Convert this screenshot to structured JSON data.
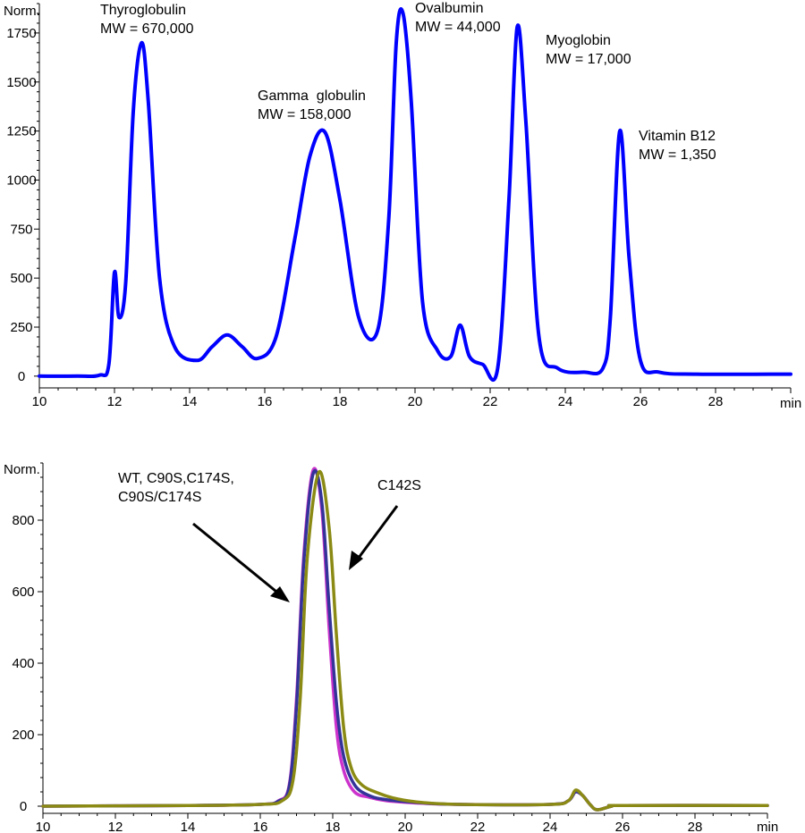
{
  "chart_data": [
    {
      "type": "line",
      "ylabel": "Norm.",
      "xunit": "min",
      "xlim": [
        10,
        30
      ],
      "ylim": [
        -60,
        1900
      ],
      "xticks": [
        10,
        12,
        14,
        16,
        18,
        20,
        22,
        24,
        26,
        28
      ],
      "yticks": [
        0,
        250,
        500,
        750,
        1000,
        1250,
        1500,
        1750
      ],
      "grid": false,
      "series": [
        {
          "color": "#0000ff",
          "x": [
            10,
            11,
            11.6,
            11.85,
            12.0,
            12.12,
            12.3,
            12.5,
            12.72,
            12.9,
            13.2,
            13.6,
            14.2,
            14.6,
            15.0,
            15.4,
            15.8,
            16.3,
            16.8,
            17.2,
            17.6,
            18.0,
            18.5,
            19.0,
            19.3,
            19.5,
            19.68,
            19.9,
            20.2,
            20.6,
            20.95,
            21.2,
            21.45,
            21.8,
            22.2,
            22.5,
            22.72,
            22.95,
            23.3,
            23.8,
            24.5,
            25.0,
            25.2,
            25.45,
            25.7,
            26.0,
            26.5,
            27.5,
            30.0
          ],
          "y": [
            0,
            0,
            5,
            60,
            530,
            300,
            480,
            1350,
            1700,
            1400,
            500,
            150,
            80,
            150,
            210,
            150,
            90,
            200,
            700,
            1120,
            1245,
            900,
            300,
            230,
            800,
            1700,
            1850,
            1400,
            380,
            130,
            100,
            260,
            100,
            60,
            40,
            900,
            1780,
            1300,
            200,
            40,
            20,
            40,
            300,
            1250,
            600,
            80,
            20,
            10,
            10
          ]
        }
      ],
      "annotations": [
        {
          "lines": [
            "Thyroglobulin",
            "MW = 670,000"
          ]
        },
        {
          "lines": [
            "Gamma  globulin",
            "MW = 158,000"
          ]
        },
        {
          "lines": [
            "Ovalbumin",
            "MW = 44,000"
          ]
        },
        {
          "lines": [
            "Myoglobin",
            "MW = 17,000"
          ]
        },
        {
          "lines": [
            "Vitamin B12",
            "MW = 1,350"
          ]
        }
      ]
    },
    {
      "type": "line",
      "ylabel": "Norm.",
      "xunit": "min",
      "xlim": [
        10,
        30
      ],
      "ylim": [
        -20,
        960
      ],
      "xticks": [
        10,
        12,
        14,
        16,
        18,
        20,
        22,
        24,
        26,
        28
      ],
      "yticks": [
        0,
        200,
        400,
        600,
        800
      ],
      "grid": false,
      "series": [
        {
          "color": "#cc33cc",
          "x": [
            10,
            14,
            16,
            16.5,
            16.8,
            17.0,
            17.2,
            17.46,
            17.7,
            17.9,
            18.1,
            18.3,
            18.6,
            19.0,
            19.5,
            20.5,
            21.5,
            24.0,
            24.5,
            24.7,
            24.9,
            25.1,
            25.3,
            25.7,
            26.0,
            30.0
          ],
          "y": [
            0,
            2,
            5,
            15,
            60,
            300,
            700,
            940,
            830,
            500,
            220,
            100,
            40,
            25,
            15,
            8,
            5,
            5,
            15,
            40,
            30,
            5,
            -10,
            0,
            2,
            2
          ]
        },
        {
          "color": "#33339a",
          "x": [
            10,
            14,
            16,
            16.5,
            16.8,
            17.0,
            17.2,
            17.46,
            17.7,
            17.9,
            18.1,
            18.3,
            18.6,
            19.0,
            19.5,
            20.5,
            21.5,
            24.0,
            24.5,
            24.7,
            24.9,
            25.1,
            25.3,
            25.7,
            26.0,
            30.0
          ],
          "y": [
            0,
            2,
            5,
            14,
            55,
            280,
            680,
            930,
            850,
            560,
            290,
            140,
            60,
            30,
            18,
            9,
            5,
            5,
            15,
            40,
            30,
            5,
            -10,
            0,
            2,
            2
          ]
        },
        {
          "color": "#8a8a14",
          "x": [
            10,
            14,
            16,
            16.6,
            16.9,
            17.1,
            17.3,
            17.62,
            17.9,
            18.1,
            18.3,
            18.5,
            18.8,
            19.3,
            19.8,
            20.5,
            21.5,
            24.0,
            24.5,
            24.7,
            24.9,
            25.1,
            25.3,
            25.7,
            26.0,
            30.0
          ],
          "y": [
            0,
            2,
            5,
            15,
            70,
            300,
            700,
            935,
            780,
            480,
            220,
            110,
            60,
            35,
            20,
            10,
            5,
            5,
            15,
            45,
            30,
            5,
            -10,
            0,
            2,
            2
          ]
        }
      ],
      "annotations": [
        {
          "lines": [
            "WT, C90S,C174S,",
            "C90S/C174S"
          ]
        },
        {
          "lines": [
            "C142S"
          ]
        }
      ]
    }
  ]
}
